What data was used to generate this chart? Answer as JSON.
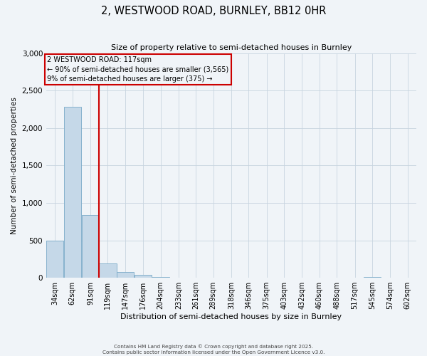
{
  "title": "2, WESTWOOD ROAD, BURNLEY, BB12 0HR",
  "subtitle": "Size of property relative to semi-detached houses in Burnley",
  "xlabel": "Distribution of semi-detached houses by size in Burnley",
  "ylabel": "Number of semi-detached properties",
  "bar_values": [
    500,
    2280,
    840,
    190,
    80,
    40,
    10,
    0,
    0,
    0,
    0,
    0,
    0,
    0,
    0,
    0,
    0,
    0,
    15,
    0,
    0
  ],
  "bin_edges": [
    34,
    62,
    91,
    119,
    147,
    176,
    204,
    233,
    261,
    289,
    318,
    346,
    375,
    403,
    432,
    460,
    488,
    517,
    545,
    574,
    602
  ],
  "tick_labels": [
    "34sqm",
    "62sqm",
    "91sqm",
    "119sqm",
    "147sqm",
    "176sqm",
    "204sqm",
    "233sqm",
    "261sqm",
    "289sqm",
    "318sqm",
    "346sqm",
    "375sqm",
    "403sqm",
    "432sqm",
    "460sqm",
    "488sqm",
    "517sqm",
    "545sqm",
    "574sqm",
    "602sqm"
  ],
  "bar_color": "#c5d8e8",
  "bar_edgecolor": "#7aaac8",
  "vline_x": 119,
  "vline_color": "#cc0000",
  "annotation_title": "2 WESTWOOD ROAD: 117sqm",
  "annotation_line1": "← 90% of semi-detached houses are smaller (3,565)",
  "annotation_line2": "9% of semi-detached houses are larger (375) →",
  "annotation_box_color": "#cc0000",
  "ylim": [
    0,
    3000
  ],
  "yticks": [
    0,
    500,
    1000,
    1500,
    2000,
    2500,
    3000
  ],
  "footer_line1": "Contains HM Land Registry data © Crown copyright and database right 2025.",
  "footer_line2": "Contains public sector information licensed under the Open Government Licence v3.0.",
  "bg_color": "#f0f4f8"
}
